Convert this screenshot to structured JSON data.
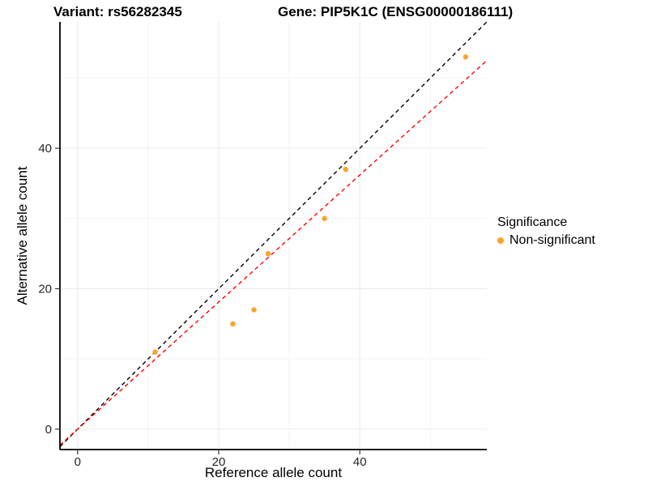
{
  "chart_data": {
    "type": "scatter",
    "titles": {
      "left": "Variant: rs56282345",
      "right": "Gene: PIP5K1C (ENSG00000186111)"
    },
    "xlabel": "Reference allele count",
    "ylabel": "Alternative allele count",
    "xlim": [
      -2.5,
      58
    ],
    "ylim": [
      -2.9,
      58
    ],
    "x_ticks": [
      0,
      20,
      40
    ],
    "y_ticks": [
      0,
      20,
      40
    ],
    "x_minor_ticks": [
      10,
      30,
      50
    ],
    "y_minor_ticks": [
      10,
      30,
      50
    ],
    "grid": "major+minor",
    "background": "#ffffff",
    "axis_color": "#000000",
    "grid_major_color": "#e9e9e9",
    "grid_minor_color": "#f4f4f4",
    "tick_label_color": "#262626",
    "series": [
      {
        "name": "Non-significant",
        "marker": "circle",
        "color": "#FCA32C",
        "points": [
          [
            11,
            11
          ],
          [
            22,
            15
          ],
          [
            25,
            17
          ],
          [
            27,
            25
          ],
          [
            35,
            30
          ],
          [
            38,
            37
          ],
          [
            55,
            53
          ]
        ]
      }
    ],
    "reference_lines": [
      {
        "name": "identity-line",
        "slope": 1,
        "intercept": 0,
        "color": "#000000",
        "style": "dashed"
      },
      {
        "name": "fit-line",
        "slope": 0.905,
        "intercept": 0,
        "color": "#FF0000",
        "style": "dashed"
      }
    ],
    "legend": {
      "title": "Significance",
      "position": "right",
      "entries": [
        {
          "label": "Non-significant",
          "color": "#FCA32C",
          "marker": "circle"
        }
      ]
    }
  }
}
